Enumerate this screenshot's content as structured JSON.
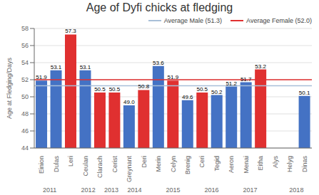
{
  "chart_data": {
    "type": "bar",
    "title": "Age of Dyfi chicks at fledging",
    "ylabel": "Age at Fledging/Days",
    "categories": [
      "Einion",
      "Dulas",
      "Leri",
      "Ceulan",
      "Clarach",
      "Cerist",
      "Greynant",
      "Deri",
      "Merin",
      "Celyn",
      "Brenig",
      "Ceri",
      "Tegid",
      "Aeron",
      "Menai",
      "Eitha",
      "Alys",
      "Helyg",
      "Dinas"
    ],
    "years": [
      2011,
      2011,
      2011,
      2012,
      2012,
      2013,
      2014,
      2014,
      2015,
      2015,
      2015,
      2016,
      2016,
      2017,
      2017,
      2017,
      2018,
      2018,
      2018
    ],
    "values": [
      51.9,
      53.1,
      57.3,
      53.1,
      50.5,
      50.5,
      49.0,
      50.8,
      53.6,
      51.9,
      49.6,
      50.5,
      50.2,
      51.2,
      51.7,
      53.2,
      null,
      null,
      50.1
    ],
    "value_labels": [
      "51.9",
      "53.1",
      "57.3",
      "53.1",
      "50.5",
      "50.5",
      "49.0",
      "50.8",
      "53.6",
      "51.9",
      "49.6",
      "50.5",
      "50.2",
      "51.2",
      "51.7",
      "53.2",
      null,
      null,
      "50.1"
    ],
    "colors": [
      "#4472c4",
      "#4472c4",
      "#e03030",
      "#4472c4",
      "#e03030",
      "#e03030",
      "#4472c4",
      "#e03030",
      "#4472c4",
      "#e03030",
      "#4472c4",
      "#e03030",
      "#4472c4",
      "#4472c4",
      "#4472c4",
      "#e03030",
      "#e03030",
      "#4472c4",
      "#4472c4"
    ],
    "reference_lines": [
      {
        "name": "Average Male (51.3)",
        "value": 51.3,
        "color": "#a8bfd8"
      },
      {
        "name": "Average Female (52.0)",
        "value": 52.0,
        "color": "#e03030"
      }
    ],
    "ylim": [
      44.0,
      58.0
    ],
    "yticks": [
      44.0,
      46.0,
      48.0,
      50.0,
      52.0,
      54.0,
      56.0,
      58.0
    ],
    "grid": true,
    "legend": "upper right",
    "data_labels": true
  }
}
